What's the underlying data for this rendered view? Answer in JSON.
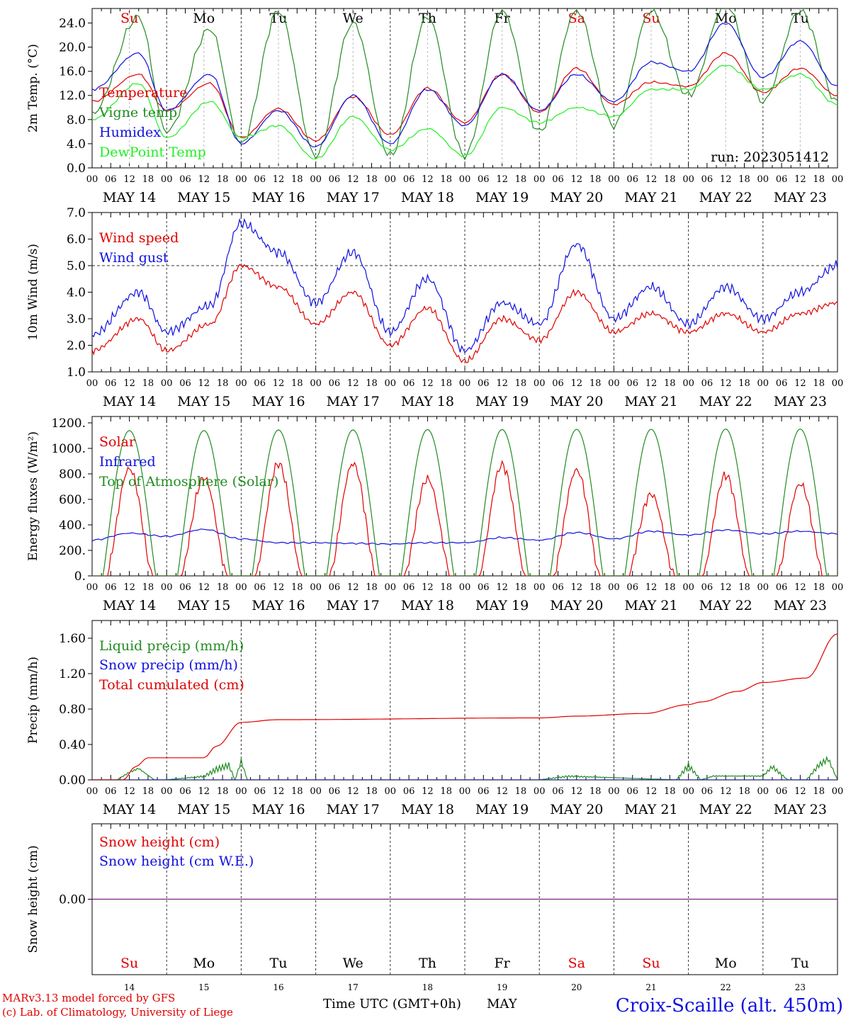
{
  "days": {
    "weekdays": [
      "Su",
      "Mo",
      "Tu",
      "We",
      "Th",
      "Fr",
      "Sa",
      "Su",
      "Mo",
      "Tu"
    ],
    "weekday_colors": [
      "#e00000",
      "#000000",
      "#000000",
      "#000000",
      "#000000",
      "#000000",
      "#e00000",
      "#e00000",
      "#000000",
      "#000000"
    ],
    "dates": [
      "MAY 14",
      "MAY 15",
      "MAY 16",
      "MAY 17",
      "MAY 18",
      "MAY 19",
      "MAY 20",
      "MAY 21",
      "MAY 22",
      "MAY 23"
    ],
    "day_numbers": [
      "14",
      "15",
      "16",
      "17",
      "18",
      "19",
      "20",
      "21",
      "22",
      "23"
    ],
    "hour_labels": [
      "00",
      "06",
      "12",
      "18"
    ],
    "final_hour_label": "00"
  },
  "colors": {
    "red": "#e00000",
    "darkgreen": "#228b22",
    "blue": "#1010e0",
    "lightgreen": "#22ee22",
    "purple": "#7a3a9a"
  },
  "footer": {
    "model_line1": "MARv3.13 model forced by GFS",
    "model_line2": "(c) Lab. of Climatology, University of Liege",
    "time_axis": "Time UTC (GMT+0h)",
    "month": "MAY",
    "station": "Croix-Scaille (alt. 450m)"
  },
  "chart_data": [
    {
      "type": "line",
      "ylabel": "2m Temp. (°C)",
      "ylim": [
        0,
        26.4
      ],
      "yticks": [
        "0.0",
        "4.0",
        "8.0",
        "12.0",
        "16.0",
        "20.0",
        "24.0"
      ],
      "yticks_values": [
        0,
        4,
        8,
        12,
        16,
        20,
        24
      ],
      "annotation": "run: 2023051412",
      "x_unit": "hours since 2023-05-14 00 UTC",
      "x": [
        0,
        15,
        24,
        38,
        48,
        60,
        72,
        84,
        96,
        108,
        120,
        132,
        144,
        156,
        168,
        180,
        192,
        204,
        216,
        228,
        240
      ],
      "series": [
        {
          "name": "Temperature",
          "color": "#e00000",
          "values": [
            11,
            15.5,
            9.5,
            14,
            5,
            9.8,
            4.5,
            11.8,
            5.5,
            13.2,
            7.5,
            15.5,
            9.2,
            16.5,
            10.5,
            14.2,
            13.5,
            19,
            12.5,
            16.5,
            12
          ]
        },
        {
          "name": "Vigne temp",
          "color": "#228b22",
          "values": [
            9,
            25,
            6,
            23,
            4,
            26,
            2,
            24,
            2,
            25,
            2,
            26,
            6,
            26,
            7,
            26,
            12,
            27,
            11,
            26,
            11
          ]
        },
        {
          "name": "Humidex",
          "color": "#1010e0",
          "values": [
            13,
            19,
            9.5,
            15.5,
            4,
            9.5,
            3.5,
            12,
            4,
            13,
            7,
            15.5,
            9.5,
            15.5,
            11,
            17.5,
            16,
            24,
            15,
            21,
            13.5
          ]
        },
        {
          "name": "DewPoint Temp",
          "color": "#22ee22",
          "values": [
            8,
            14,
            5,
            11,
            5,
            7,
            1.5,
            8.5,
            3,
            6.5,
            2,
            10,
            7.5,
            10,
            8.5,
            13,
            13,
            17,
            13,
            15.5,
            10.5
          ]
        }
      ]
    },
    {
      "type": "line",
      "ylabel": "10m Wind (m/s)",
      "ylim": [
        1,
        7
      ],
      "yticks": [
        "1.0",
        "2.0",
        "3.0",
        "4.0",
        "5.0",
        "6.0",
        "7.0"
      ],
      "yticks_values": [
        1,
        2,
        3,
        4,
        5,
        6,
        7
      ],
      "ref_line": 5,
      "x_unit": "hours since 2023-05-14 00 UTC",
      "x": [
        0,
        15,
        24,
        38,
        48,
        60,
        72,
        84,
        96,
        108,
        120,
        132,
        144,
        156,
        168,
        180,
        192,
        204,
        216,
        228,
        240
      ],
      "series": [
        {
          "name": "Wind speed",
          "color": "#e00000",
          "values": [
            1.8,
            3,
            1.8,
            2.8,
            5,
            4.2,
            2.8,
            4,
            2,
            3.4,
            1.4,
            3,
            2.2,
            4,
            2.5,
            3.2,
            2.5,
            3.2,
            2.5,
            3.2,
            3.6
          ]
        },
        {
          "name": "Wind gust",
          "color": "#1010e0",
          "values": [
            2.4,
            4,
            2.5,
            3.5,
            6.6,
            5.5,
            3.6,
            5.5,
            2.5,
            4.5,
            1.8,
            3.6,
            2.8,
            5.8,
            3,
            4.2,
            2.8,
            4.2,
            3,
            4,
            5
          ]
        }
      ]
    },
    {
      "type": "line",
      "ylabel": "Energy fluxes (W/m²)",
      "ylim": [
        0,
        1250
      ],
      "yticks": [
        "0.",
        "200.",
        "400.",
        "600.",
        "800.",
        "1000.",
        "1200."
      ],
      "yticks_values": [
        0,
        200,
        400,
        600,
        800,
        1000,
        1200
      ],
      "x_unit": "hours since 2023-05-14 00 UTC",
      "series": [
        {
          "name": "Solar",
          "color": "#e00000",
          "daily_peak": [
            840,
            770,
            880,
            880,
            760,
            870,
            830,
            640,
            790,
            720
          ]
        },
        {
          "name": "Infrared",
          "color": "#1010e0",
          "x": [
            0,
            12,
            24,
            36,
            48,
            60,
            72,
            84,
            96,
            108,
            120,
            132,
            144,
            156,
            168,
            180,
            192,
            204,
            216,
            228,
            240
          ],
          "values": [
            280,
            335,
            310,
            365,
            290,
            260,
            260,
            255,
            250,
            260,
            260,
            300,
            280,
            340,
            290,
            350,
            320,
            360,
            330,
            350,
            330
          ]
        },
        {
          "name": "Top of Atmosphere (Solar)",
          "color": "#228b22",
          "daily_peak": [
            1140,
            1140,
            1145,
            1145,
            1148,
            1148,
            1150,
            1150,
            1152,
            1152
          ]
        }
      ]
    },
    {
      "type": "line",
      "ylabel": "Precip (mm/h)",
      "ylim": [
        0,
        1.8
      ],
      "yticks": [
        "0.00",
        "0.40",
        "0.80",
        "1.20",
        "1.60"
      ],
      "yticks_values": [
        0,
        0.4,
        0.8,
        1.2,
        1.6
      ],
      "x_unit": "hours since 2023-05-14 00 UTC",
      "series": [
        {
          "name": "Liquid precip (mm/h)",
          "color": "#228b22",
          "x": [
            0,
            8,
            12,
            15,
            20,
            24,
            36,
            40,
            44,
            46,
            48,
            50,
            144,
            153,
            188,
            192,
            196,
            200,
            216,
            219,
            224,
            230,
            234,
            237,
            240
          ],
          "values": [
            0,
            0,
            0.1,
            0.15,
            0,
            0,
            0.05,
            0.15,
            0.2,
            0,
            0.25,
            0,
            0,
            0.05,
            0,
            0.2,
            0,
            0.05,
            0.05,
            0.18,
            0,
            0,
            0.2,
            0.28,
            0
          ]
        },
        {
          "name": "Snow precip (mm/h)",
          "color": "#1010e0",
          "x": [
            0,
            240
          ],
          "values": [
            0,
            0
          ]
        },
        {
          "name": "Total cumulated (cm)",
          "color": "#e00000",
          "x": [
            0,
            10,
            14,
            18,
            36,
            40,
            48,
            60,
            144,
            156,
            178,
            192,
            196,
            208,
            216,
            230,
            240
          ],
          "values": [
            0,
            0,
            0.15,
            0.25,
            0.25,
            0.38,
            0.65,
            0.68,
            0.7,
            0.72,
            0.75,
            0.85,
            0.88,
            1.0,
            1.1,
            1.15,
            1.65
          ]
        }
      ]
    },
    {
      "type": "line",
      "ylabel": "Snow height (cm)",
      "ylim": [
        -1,
        1
      ],
      "yticks": [
        "0.00"
      ],
      "yticks_values": [
        0
      ],
      "x_unit": "hours since 2023-05-14 00 UTC",
      "series": [
        {
          "name": "Snow height (cm)",
          "color": "#e00000",
          "x": [
            0,
            240
          ],
          "values": [
            0,
            0
          ]
        },
        {
          "name": "Snow height (cm W.E.)",
          "color": "#1010e0",
          "x": [
            0,
            240
          ],
          "values": [
            0,
            0
          ]
        }
      ]
    }
  ]
}
